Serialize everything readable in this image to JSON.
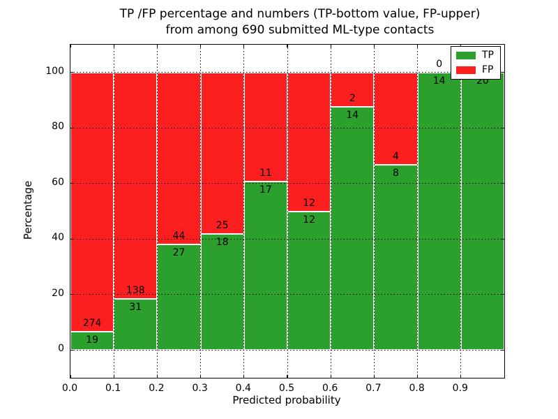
{
  "title": {
    "line1": "TP /FP percentage and numbers (TP-bottom value, FP-upper)",
    "line2": "from among 690 submitted ML-type contacts"
  },
  "colors": {
    "tp": "#2ca02c",
    "fp": "#fb1f1f",
    "bar_edge": "#ffffff",
    "grid": "#000000",
    "text": "#000000",
    "background": "#ffffff"
  },
  "legend": {
    "items": [
      {
        "label": "TP",
        "color_key": "tp"
      },
      {
        "label": "FP",
        "color_key": "fp"
      }
    ]
  },
  "axes": {
    "xlabel": "Predicted probability",
    "ylabel": "Percentage",
    "x_tick_labels": [
      "0.0",
      "0.1",
      "0.2",
      "0.3",
      "0.4",
      "0.5",
      "0.6",
      "0.7",
      "0.8",
      "0.9"
    ],
    "y_tick_values": [
      0,
      20,
      40,
      60,
      80,
      100
    ]
  },
  "chart_data": {
    "type": "bar",
    "stacked": true,
    "title": "TP /FP percentage and numbers (TP-bottom value, FP-upper)\nfrom among 690 submitted ML-type contacts",
    "xlabel": "Predicted probability",
    "ylabel": "Percentage",
    "total_contacts": 690,
    "xlim": [
      0.0,
      1.0
    ],
    "ylim": [
      -10,
      110
    ],
    "grid": true,
    "legend_position": "upper right",
    "x_bin_edges": [
      0.0,
      0.1,
      0.2,
      0.3,
      0.4,
      0.5,
      0.6,
      0.7,
      0.8,
      0.9,
      1.0
    ],
    "categories": [
      "0.0-0.1",
      "0.1-0.2",
      "0.2-0.3",
      "0.3-0.4",
      "0.4-0.5",
      "0.5-0.6",
      "0.6-0.7",
      "0.7-0.8",
      "0.8-0.9",
      "0.9-1.0"
    ],
    "series": [
      {
        "name": "TP",
        "counts": [
          19,
          31,
          27,
          18,
          17,
          12,
          14,
          8,
          14,
          20
        ],
        "pct": [
          6.48,
          18.34,
          38.03,
          41.86,
          60.71,
          50.0,
          87.5,
          66.67,
          100.0,
          100.0
        ]
      },
      {
        "name": "FP",
        "counts": [
          274,
          138,
          44,
          25,
          11,
          12,
          2,
          4,
          0,
          0
        ],
        "pct": [
          93.52,
          81.66,
          61.97,
          58.14,
          39.29,
          50.0,
          12.5,
          33.33,
          0.0,
          0.0
        ]
      }
    ],
    "bins": [
      {
        "x0": 0.0,
        "x1": 0.1,
        "tp": 19,
        "fp": 274,
        "tp_pct": 6.48
      },
      {
        "x0": 0.1,
        "x1": 0.2,
        "tp": 31,
        "fp": 138,
        "tp_pct": 18.34
      },
      {
        "x0": 0.2,
        "x1": 0.3,
        "tp": 27,
        "fp": 44,
        "tp_pct": 38.03
      },
      {
        "x0": 0.3,
        "x1": 0.4,
        "tp": 18,
        "fp": 25,
        "tp_pct": 41.86
      },
      {
        "x0": 0.4,
        "x1": 0.5,
        "tp": 17,
        "fp": 11,
        "tp_pct": 60.71
      },
      {
        "x0": 0.5,
        "x1": 0.6,
        "tp": 12,
        "fp": 12,
        "tp_pct": 50.0
      },
      {
        "x0": 0.6,
        "x1": 0.7,
        "tp": 14,
        "fp": 2,
        "tp_pct": 87.5
      },
      {
        "x0": 0.7,
        "x1": 0.8,
        "tp": 8,
        "fp": 4,
        "tp_pct": 66.67
      },
      {
        "x0": 0.8,
        "x1": 0.9,
        "tp": 14,
        "fp": 0,
        "tp_pct": 100.0
      },
      {
        "x0": 0.9,
        "x1": 1.0,
        "tp": 20,
        "fp": 0,
        "tp_pct": 100.0
      }
    ]
  }
}
